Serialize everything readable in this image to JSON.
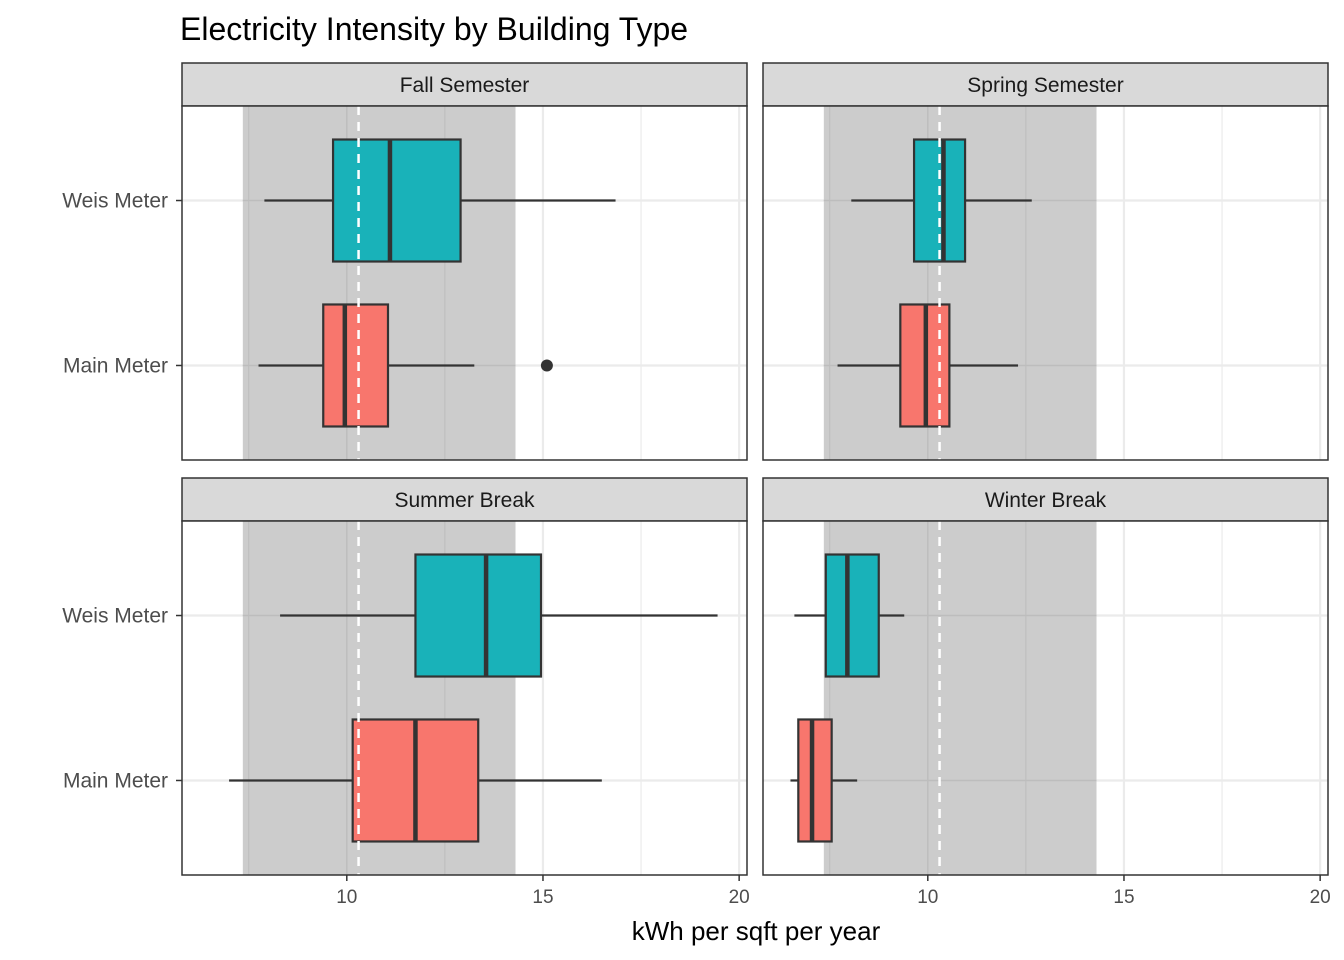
{
  "chart_data": {
    "type": "boxplot",
    "title": "Electricity Intensity by Building Type",
    "xlabel": "kWh per sqft per year",
    "ylabel": "",
    "xlim": [
      5.8,
      20.2
    ],
    "x_ticks": [
      10,
      15,
      20
    ],
    "categories": [
      "Main Meter",
      "Weis Meter"
    ],
    "colors": {
      "Main Meter": "#F8766D",
      "Weis Meter": "#19B2B9"
    },
    "reference_band": {
      "from": 7.35,
      "to": 14.3,
      "color": "#C9C9C9"
    },
    "reference_line": {
      "value": 10.3,
      "color": "#FFFFFF"
    },
    "panels": [
      {
        "name": "Fall Semester",
        "boxes": [
          {
            "category": "Weis Meter",
            "min": 7.9,
            "q1": 9.65,
            "median": 11.1,
            "q3": 12.9,
            "max": 16.85,
            "outliers": []
          },
          {
            "category": "Main Meter",
            "min": 7.75,
            "q1": 9.4,
            "median": 9.95,
            "q3": 11.05,
            "max": 13.25,
            "outliers": [
              15.1
            ]
          }
        ]
      },
      {
        "name": "Spring Semester",
        "boxes": [
          {
            "category": "Weis Meter",
            "min": 8.05,
            "q1": 9.65,
            "median": 10.4,
            "q3": 10.95,
            "max": 12.65,
            "outliers": []
          },
          {
            "category": "Main Meter",
            "min": 7.7,
            "q1": 9.3,
            "median": 9.95,
            "q3": 10.55,
            "max": 12.3,
            "outliers": []
          }
        ]
      },
      {
        "name": "Summer Break",
        "boxes": [
          {
            "category": "Weis Meter",
            "min": 8.3,
            "q1": 11.75,
            "median": 13.55,
            "q3": 14.95,
            "max": 19.45,
            "outliers": []
          },
          {
            "category": "Main Meter",
            "min": 7.0,
            "q1": 10.15,
            "median": 11.75,
            "q3": 13.35,
            "max": 16.5,
            "outliers": []
          }
        ]
      },
      {
        "name": "Winter Break",
        "boxes": [
          {
            "category": "Weis Meter",
            "min": 6.6,
            "q1": 7.4,
            "median": 7.95,
            "q3": 8.75,
            "max": 9.4,
            "outliers": []
          },
          {
            "category": "Main Meter",
            "min": 6.5,
            "q1": 6.7,
            "median": 7.05,
            "q3": 7.55,
            "max": 8.2,
            "outliers": []
          }
        ]
      }
    ]
  }
}
